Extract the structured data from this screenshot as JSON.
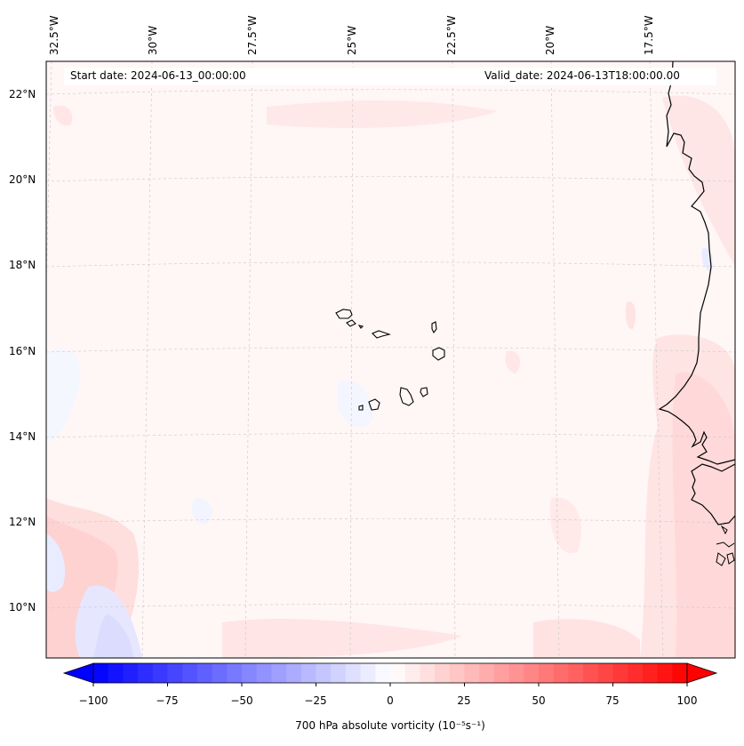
{
  "map": {
    "start_label": "Start date: 2024-06-13_00:00:00",
    "valid_label": "Valid_date: 2024-06-13T18:00:00.00",
    "lon_labels": [
      "32.5°W",
      "30°W",
      "27.5°W",
      "25°W",
      "22.5°W",
      "20°W",
      "17.5°W"
    ],
    "lat_labels": [
      "22°N",
      "20°N",
      "18°N",
      "16°N",
      "14°N",
      "12°N",
      "10°N"
    ],
    "field": "700 hPa absolute vorticity",
    "coastline_color": "#000000",
    "gridline_color": "#c8c8c8"
  },
  "colorbar": {
    "title": "700 hPa absolute vorticity (10⁻⁵s⁻¹)",
    "ticks": [
      "−100",
      "−75",
      "−50",
      "−25",
      "0",
      "25",
      "50",
      "75",
      "100"
    ],
    "range": [
      -100,
      100
    ],
    "colormap": "bwr",
    "extend": "both",
    "low_color": "#0000ff",
    "mid_color": "#ffffff",
    "high_color": "#ff0000"
  }
}
